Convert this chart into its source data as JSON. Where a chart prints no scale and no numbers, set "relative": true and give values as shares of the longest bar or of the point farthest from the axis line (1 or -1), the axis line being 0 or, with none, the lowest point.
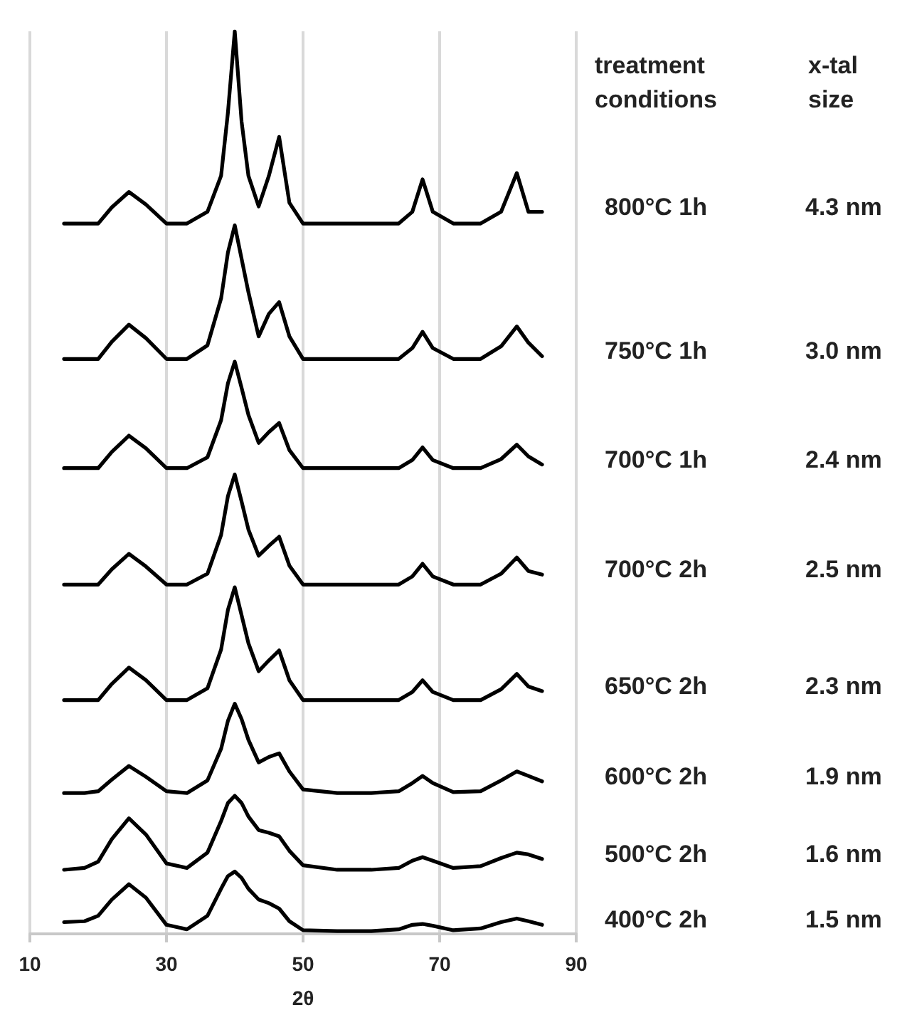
{
  "chart_data": {
    "type": "line",
    "relative": true,
    "xlabel": "2θ",
    "xlim": [
      10,
      90
    ],
    "xticks": [
      10,
      30,
      50,
      70,
      90
    ],
    "grid": "x",
    "legend": false,
    "marker": "none",
    "line_style": "solid",
    "x": [
      15,
      18,
      20,
      22,
      24.5,
      27,
      30,
      33,
      36,
      38,
      39,
      40,
      41,
      42,
      43.5,
      45,
      46.5,
      48,
      50,
      55,
      60,
      64,
      66,
      67.5,
      69,
      72,
      76,
      79,
      81.3,
      83,
      85
    ],
    "series": [
      {
        "name": "800°C 1h",
        "color": "#000000",
        "values": [
          0.787,
          0.787,
          0.787,
          0.805,
          0.822,
          0.808,
          0.787,
          0.787,
          0.8,
          0.84,
          0.91,
          1,
          0.9,
          0.84,
          0.806,
          0.84,
          0.883,
          0.81,
          0.787,
          0.787,
          0.787,
          0.787,
          0.8,
          0.836,
          0.8,
          0.787,
          0.787,
          0.8,
          0.843,
          0.8,
          0.8
        ]
      },
      {
        "name": "750°C 1h",
        "color": "#000000",
        "values": [
          0.637,
          0.637,
          0.637,
          0.656,
          0.675,
          0.66,
          0.637,
          0.637,
          0.652,
          0.704,
          0.755,
          0.785,
          0.748,
          0.711,
          0.662,
          0.687,
          0.7,
          0.662,
          0.637,
          0.637,
          0.637,
          0.637,
          0.649,
          0.667,
          0.649,
          0.637,
          0.637,
          0.651,
          0.673,
          0.655,
          0.64
        ]
      },
      {
        "name": "700°C 1h",
        "color": "#000000",
        "values": [
          0.516,
          0.516,
          0.516,
          0.534,
          0.552,
          0.538,
          0.516,
          0.516,
          0.528,
          0.569,
          0.61,
          0.634,
          0.605,
          0.575,
          0.544,
          0.556,
          0.566,
          0.536,
          0.516,
          0.516,
          0.516,
          0.516,
          0.525,
          0.539,
          0.525,
          0.516,
          0.516,
          0.526,
          0.542,
          0.529,
          0.52
        ]
      },
      {
        "name": "700°C 2h",
        "color": "#000000",
        "values": [
          0.387,
          0.387,
          0.387,
          0.404,
          0.421,
          0.407,
          0.387,
          0.387,
          0.399,
          0.442,
          0.485,
          0.509,
          0.479,
          0.448,
          0.419,
          0.43,
          0.44,
          0.408,
          0.387,
          0.387,
          0.387,
          0.387,
          0.396,
          0.41,
          0.396,
          0.387,
          0.387,
          0.399,
          0.417,
          0.402,
          0.398
        ]
      },
      {
        "name": "650°C 2h",
        "color": "#000000",
        "values": [
          0.259,
          0.259,
          0.259,
          0.277,
          0.295,
          0.281,
          0.259,
          0.259,
          0.272,
          0.315,
          0.359,
          0.384,
          0.353,
          0.322,
          0.291,
          0.303,
          0.314,
          0.281,
          0.259,
          0.259,
          0.259,
          0.259,
          0.268,
          0.281,
          0.268,
          0.259,
          0.259,
          0.271,
          0.288,
          0.274,
          0.269
        ]
      },
      {
        "name": "600°C 2h",
        "color": "#000000",
        "values": [
          0.156,
          0.156,
          0.158,
          0.171,
          0.186,
          0.174,
          0.158,
          0.156,
          0.17,
          0.205,
          0.236,
          0.255,
          0.238,
          0.215,
          0.19,
          0.196,
          0.2,
          0.18,
          0.16,
          0.156,
          0.156,
          0.158,
          0.167,
          0.175,
          0.167,
          0.157,
          0.158,
          0.17,
          0.18,
          0.175,
          0.169
        ]
      },
      {
        "name": "500°C 2h",
        "color": "#000000",
        "values": [
          0.071,
          0.073,
          0.08,
          0.105,
          0.128,
          0.11,
          0.078,
          0.073,
          0.09,
          0.125,
          0.145,
          0.153,
          0.145,
          0.13,
          0.115,
          0.112,
          0.108,
          0.092,
          0.076,
          0.071,
          0.071,
          0.073,
          0.081,
          0.085,
          0.081,
          0.073,
          0.075,
          0.084,
          0.09,
          0.088,
          0.083
        ]
      },
      {
        "name": "400°C 2h",
        "color": "#000000",
        "values": [
          0.013,
          0.014,
          0.02,
          0.038,
          0.055,
          0.04,
          0.01,
          0.005,
          0.02,
          0.05,
          0.064,
          0.069,
          0.062,
          0.05,
          0.038,
          0.034,
          0.028,
          0.014,
          0.004,
          0.003,
          0.003,
          0.005,
          0.01,
          0.011,
          0.009,
          0.004,
          0.006,
          0.013,
          0.017,
          0.014,
          0.01
        ]
      }
    ],
    "annotations": [
      "treatment conditions",
      "x-tal size",
      "4.3 nm",
      "3.0 nm",
      "2.4 nm",
      "2.5 nm",
      "2.3 nm",
      "1.9 nm",
      "1.6 nm",
      "1.5 nm"
    ]
  }
}
